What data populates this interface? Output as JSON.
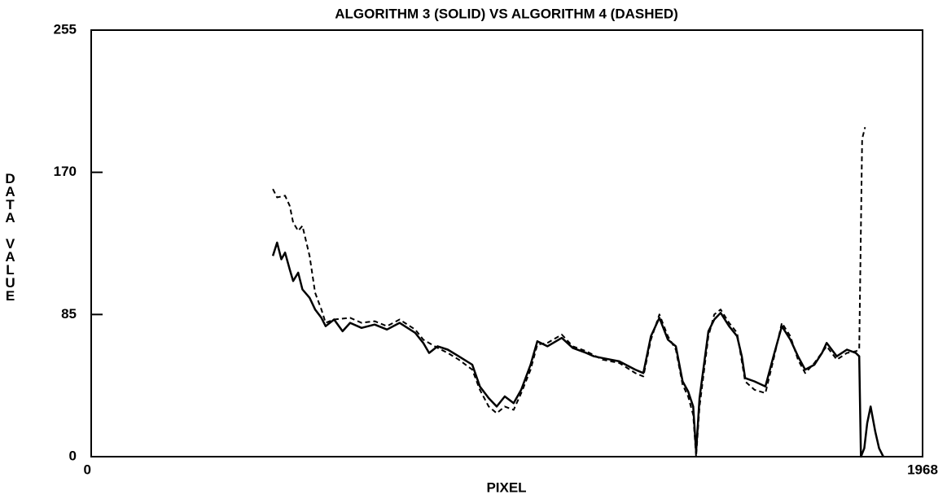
{
  "chart_data": {
    "type": "line",
    "title": "ALGORITHM 3 (SOLID) VS ALGORITHM 4 (DASHED)",
    "xlabel": "PIXEL",
    "ylabel": "DATA VALUE",
    "xlim": [
      0,
      1968
    ],
    "ylim": [
      0,
      255
    ],
    "xticks": [
      0,
      1968
    ],
    "yticks": [
      0,
      85,
      170,
      255
    ],
    "series": [
      {
        "color": "#000000",
        "dashed": false,
        "x": [
          430,
          440,
          450,
          459,
          470,
          478,
          490,
          500,
          517,
          530,
          545,
          555,
          575,
          595,
          613,
          640,
          671,
          700,
          730,
          767,
          786,
          800,
          820,
          844,
          870,
          902,
          920,
          941,
          960,
          979,
          1000,
          1018,
          1040,
          1056,
          1080,
          1114,
          1140,
          1172,
          1190,
          1210,
          1250,
          1288,
          1307,
          1325,
          1345,
          1365,
          1384,
          1400,
          1413,
          1425,
          1432,
          1440,
          1461,
          1475,
          1490,
          1510,
          1529,
          1540,
          1548,
          1570,
          1596,
          1615,
          1635,
          1655,
          1673,
          1690,
          1712,
          1730,
          1741,
          1765,
          1789,
          1810,
          1818,
          1822,
          1830,
          1837,
          1845,
          1856,
          1865,
          1875
        ],
        "values": [
          120,
          128,
          118,
          122,
          112,
          105,
          110,
          100,
          95,
          88,
          83,
          78,
          82,
          75,
          80,
          77,
          79,
          76,
          80,
          74,
          68,
          62,
          66,
          64,
          60,
          55,
          42,
          35,
          30,
          36,
          32,
          40,
          55,
          69,
          66,
          71,
          65,
          62,
          60,
          59,
          57,
          52,
          50,
          72,
          83,
          70,
          66,
          45,
          39,
          30,
          3,
          35,
          75,
          82,
          86,
          78,
          72,
          60,
          47,
          45,
          42,
          60,
          78,
          70,
          60,
          52,
          55,
          62,
          68,
          60,
          64,
          62,
          60,
          0,
          5,
          20,
          30,
          15,
          5,
          0
        ]
      },
      {
        "color": "#000000",
        "dashed": true,
        "x": [
          430,
          440,
          459,
          470,
          478,
          490,
          500,
          517,
          530,
          545,
          555,
          575,
          613,
          640,
          671,
          700,
          730,
          767,
          786,
          820,
          844,
          870,
          902,
          920,
          941,
          960,
          979,
          1000,
          1018,
          1040,
          1056,
          1080,
          1114,
          1140,
          1172,
          1210,
          1250,
          1288,
          1307,
          1325,
          1345,
          1365,
          1384,
          1400,
          1413,
          1425,
          1432,
          1440,
          1461,
          1475,
          1490,
          1510,
          1529,
          1548,
          1570,
          1596,
          1615,
          1635,
          1655,
          1673,
          1690,
          1712,
          1741,
          1765,
          1789,
          1810,
          1818,
          1825,
          1832
        ],
        "values": [
          160,
          155,
          156,
          150,
          140,
          135,
          138,
          120,
          98,
          88,
          80,
          82,
          83,
          80,
          81,
          78,
          82,
          76,
          70,
          65,
          62,
          58,
          52,
          40,
          30,
          26,
          30,
          28,
          38,
          52,
          67,
          68,
          73,
          66,
          63,
          58,
          56,
          50,
          48,
          70,
          85,
          72,
          64,
          43,
          36,
          25,
          0,
          30,
          72,
          85,
          88,
          80,
          74,
          45,
          40,
          38,
          58,
          80,
          72,
          58,
          50,
          56,
          66,
          58,
          62,
          63,
          64,
          190,
          197
        ]
      }
    ]
  }
}
